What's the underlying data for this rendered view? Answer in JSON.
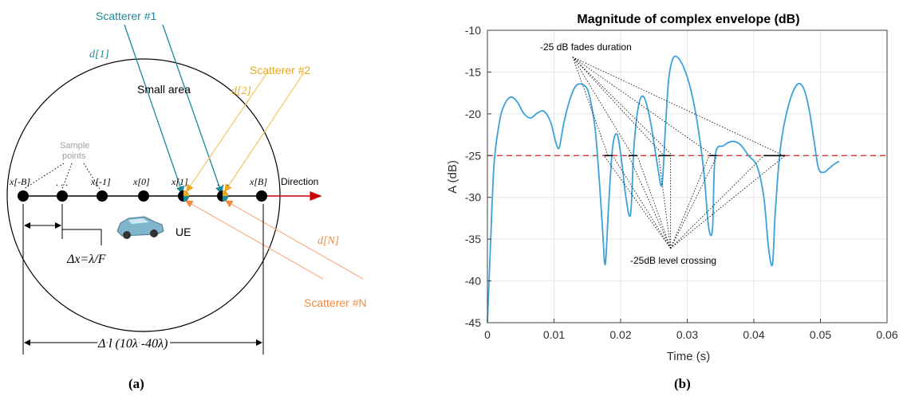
{
  "panel_a": {
    "caption": "(a)",
    "scatterer1": "Scatterer #1",
    "scatterer2": "Scatterer #2",
    "scattererN": "Scatterer #N",
    "d1": "d[1]",
    "d2": "d[2]",
    "dN": "d[N]",
    "small_area": "Small area",
    "sample_points_line1": "Sample",
    "sample_points_line2": "points",
    "x_minus_B": "x[-B]",
    "dots_left": ". . .",
    "x_minus_1": "x[-1]",
    "x0": "x[0]",
    "x1": "x[1]",
    "dots_right": ". . .",
    "xB": "x[B]",
    "direction": "Direction",
    "ue": "UE",
    "delta_x": "Δx=λ/F",
    "delta_l": "Δ l (10λ -40λ)",
    "colors": {
      "teal": "#1a8a9a",
      "gold": "#e8a820",
      "orange": "#f08a40",
      "arrow": "#cc0000",
      "gray": "#a0a0a0"
    }
  },
  "panel_b": {
    "caption": "(b)",
    "annotation_top": "-25 dB fades duration",
    "annotation_bottom": "-25dB level crossing",
    "chart_data": {
      "type": "line",
      "title": "Magnitude of complex envelope (dB)",
      "xlabel": "Time (s)",
      "ylabel": "A (dB)",
      "xlim": [
        0,
        0.06
      ],
      "ylim": [
        -45,
        -10
      ],
      "xticks": [
        "0",
        "0.01",
        "0.02",
        "0.03",
        "0.04",
        "0.05",
        "0.06"
      ],
      "yticks": [
        "-10",
        "-15",
        "-20",
        "-25",
        "-30",
        "-35",
        "-40",
        "-45"
      ],
      "grid": true,
      "threshold": -25,
      "series": [
        {
          "color": "#3ba3d8",
          "x": [
            0,
            0.0005,
            0.001,
            0.0018,
            0.0025,
            0.0035,
            0.0045,
            0.0055,
            0.0065,
            0.0075,
            0.0085,
            0.0095,
            0.0103,
            0.0108,
            0.0115,
            0.0125,
            0.0135,
            0.0148,
            0.0155,
            0.0162,
            0.0168,
            0.0173,
            0.0177,
            0.0182,
            0.0188,
            0.0195,
            0.0202,
            0.0208,
            0.0215,
            0.022,
            0.0227,
            0.0235,
            0.0245,
            0.0255,
            0.0262,
            0.0267,
            0.0272,
            0.0278,
            0.0285,
            0.0295,
            0.0305,
            0.0315,
            0.0325,
            0.0332,
            0.0338,
            0.0342,
            0.0355,
            0.0368,
            0.038,
            0.0392,
            0.0405,
            0.0415,
            0.0422,
            0.0428,
            0.0432,
            0.044,
            0.0452,
            0.0465,
            0.0475,
            0.0483,
            0.049,
            0.0497,
            0.0505,
            0.0512,
            0.0518,
            0.0523,
            0.0528
          ],
          "y": [
            -45,
            -35,
            -26,
            -21,
            -19,
            -18,
            -18.6,
            -20,
            -20.5,
            -19.9,
            -19.7,
            -21,
            -23.5,
            -24,
            -21,
            -18,
            -16.5,
            -16.8,
            -18.5,
            -22,
            -28,
            -34,
            -38,
            -31,
            -24,
            -22.5,
            -26,
            -30,
            -32,
            -24,
            -19,
            -18,
            -21,
            -26,
            -28.5,
            -22,
            -16,
            -13.5,
            -13.2,
            -14.5,
            -17,
            -21,
            -27,
            -33.5,
            -33.7,
            -25,
            -23.8,
            -23.3,
            -23.7,
            -25,
            -26.3,
            -30,
            -36,
            -38,
            -32,
            -24,
            -19,
            -16.5,
            -17,
            -19.5,
            -23,
            -26.5,
            -27,
            -26.6,
            -26.2,
            -25.9,
            -25.7
          ]
        }
      ]
    },
    "colors": {
      "threshold": "#e03030",
      "axis": "#404040",
      "grid": "#e6e6e6"
    }
  }
}
